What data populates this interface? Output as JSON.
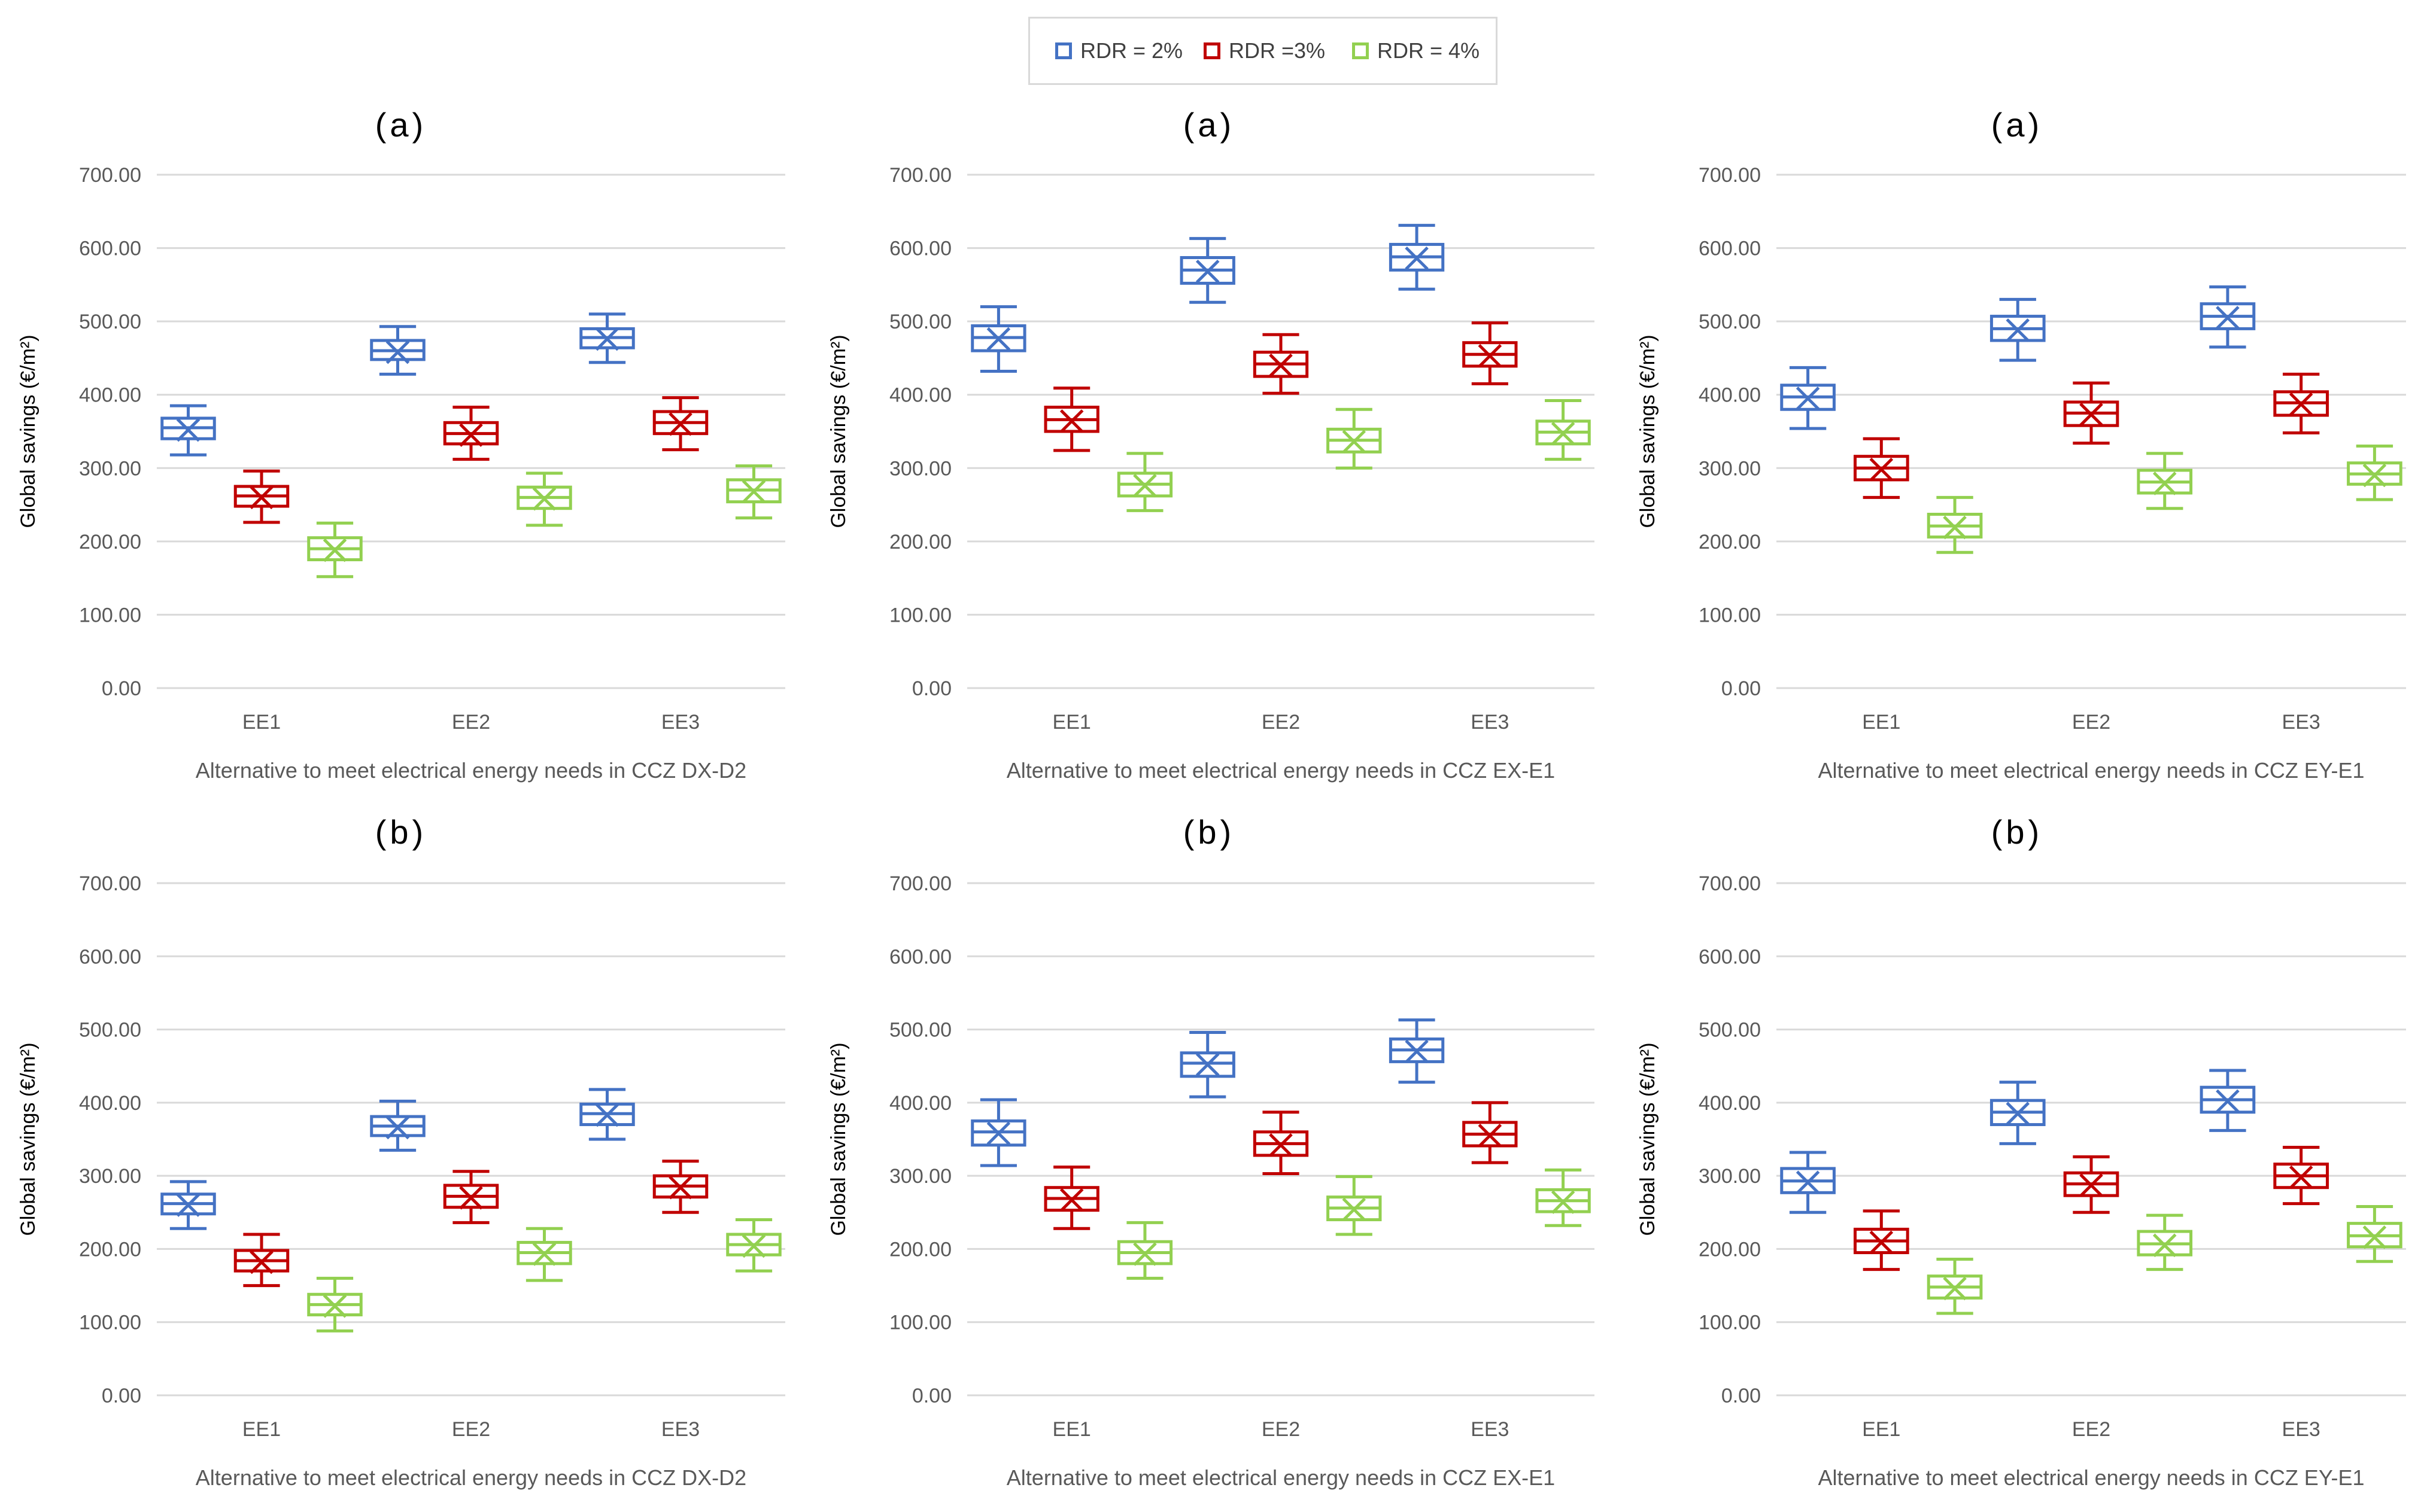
{
  "legend": {
    "items": [
      {
        "label": "RDR = 2%",
        "color": "#4472C4"
      },
      {
        "label": "RDR =3%",
        "color": "#C00000"
      },
      {
        "label": "RDR = 4%",
        "color": "#92D050"
      }
    ]
  },
  "chart_data": [
    {
      "type": "box",
      "title": "(a)",
      "xlabel": "Alternative to meet electrical energy needs in CCZ DX-D2",
      "ylabel": "Global savings (€/m²)",
      "ylim": [
        0,
        700
      ],
      "yticks": [
        "0.00",
        "100.00",
        "200.00",
        "300.00",
        "400.00",
        "500.00",
        "600.00",
        "700.00"
      ],
      "categories": [
        "EE1",
        "EE2",
        "EE3"
      ],
      "series": [
        {
          "name": "RDR = 2%",
          "boxes": [
            {
              "min": 318,
              "q1": 340,
              "median": 355,
              "mean": 352,
              "q3": 368,
              "max": 385
            },
            {
              "min": 428,
              "q1": 448,
              "median": 460,
              "mean": 458,
              "q3": 474,
              "max": 493
            },
            {
              "min": 444,
              "q1": 464,
              "median": 478,
              "mean": 476,
              "q3": 490,
              "max": 510
            }
          ]
        },
        {
          "name": "RDR =3%",
          "boxes": [
            {
              "min": 226,
              "q1": 248,
              "median": 262,
              "mean": 260,
              "q3": 275,
              "max": 296
            },
            {
              "min": 312,
              "q1": 333,
              "median": 347,
              "mean": 345,
              "q3": 362,
              "max": 383
            },
            {
              "min": 325,
              "q1": 347,
              "median": 362,
              "mean": 360,
              "q3": 377,
              "max": 396
            }
          ]
        },
        {
          "name": "RDR = 4%",
          "boxes": [
            {
              "min": 152,
              "q1": 175,
              "median": 190,
              "mean": 188,
              "q3": 205,
              "max": 225
            },
            {
              "min": 222,
              "q1": 245,
              "median": 260,
              "mean": 258,
              "q3": 274,
              "max": 293
            },
            {
              "min": 232,
              "q1": 254,
              "median": 270,
              "mean": 268,
              "q3": 284,
              "max": 303
            }
          ]
        }
      ]
    },
    {
      "type": "box",
      "title": "(a)",
      "xlabel": "Alternative to meet electrical energy needs in CCZ EX-E1",
      "ylabel": "Global savings (€/m²)",
      "ylim": [
        0,
        700
      ],
      "yticks": [
        "0.00",
        "100.00",
        "200.00",
        "300.00",
        "400.00",
        "500.00",
        "600.00",
        "700.00"
      ],
      "categories": [
        "EE1",
        "EE2",
        "EE3"
      ],
      "series": [
        {
          "name": "RDR = 2%",
          "boxes": [
            {
              "min": 432,
              "q1": 460,
              "median": 478,
              "mean": 476,
              "q3": 494,
              "max": 520
            },
            {
              "min": 526,
              "q1": 552,
              "median": 570,
              "mean": 568,
              "q3": 587,
              "max": 613
            },
            {
              "min": 544,
              "q1": 570,
              "median": 588,
              "mean": 586,
              "q3": 605,
              "max": 631
            }
          ]
        },
        {
          "name": "RDR =3%",
          "boxes": [
            {
              "min": 324,
              "q1": 350,
              "median": 366,
              "mean": 364,
              "q3": 383,
              "max": 409
            },
            {
              "min": 402,
              "q1": 425,
              "median": 442,
              "mean": 440,
              "q3": 458,
              "max": 482
            },
            {
              "min": 415,
              "q1": 439,
              "median": 455,
              "mean": 453,
              "q3": 471,
              "max": 498
            }
          ]
        },
        {
          "name": "RDR = 4%",
          "boxes": [
            {
              "min": 242,
              "q1": 262,
              "median": 278,
              "mean": 276,
              "q3": 293,
              "max": 320
            },
            {
              "min": 300,
              "q1": 322,
              "median": 338,
              "mean": 336,
              "q3": 353,
              "max": 380
            },
            {
              "min": 312,
              "q1": 333,
              "median": 349,
              "mean": 347,
              "q3": 364,
              "max": 392
            }
          ]
        }
      ]
    },
    {
      "type": "box",
      "title": "(a)",
      "xlabel": "Alternative to meet electrical energy needs in CCZ EY-E1",
      "ylabel": "Global savings (€/m²)",
      "ylim": [
        0,
        700
      ],
      "yticks": [
        "0.00",
        "100.00",
        "200.00",
        "300.00",
        "400.00",
        "500.00",
        "600.00",
        "700.00"
      ],
      "categories": [
        "EE1",
        "EE2",
        "EE3"
      ],
      "series": [
        {
          "name": "RDR = 2%",
          "boxes": [
            {
              "min": 354,
              "q1": 380,
              "median": 397,
              "mean": 395,
              "q3": 413,
              "max": 437
            },
            {
              "min": 447,
              "q1": 474,
              "median": 490,
              "mean": 488,
              "q3": 507,
              "max": 530
            },
            {
              "min": 465,
              "q1": 490,
              "median": 507,
              "mean": 505,
              "q3": 524,
              "max": 547
            }
          ]
        },
        {
          "name": "RDR =3%",
          "boxes": [
            {
              "min": 260,
              "q1": 284,
              "median": 300,
              "mean": 298,
              "q3": 316,
              "max": 340
            },
            {
              "min": 334,
              "q1": 358,
              "median": 375,
              "mean": 373,
              "q3": 390,
              "max": 416
            },
            {
              "min": 348,
              "q1": 372,
              "median": 389,
              "mean": 387,
              "q3": 404,
              "max": 428
            }
          ]
        },
        {
          "name": "RDR = 4%",
          "boxes": [
            {
              "min": 185,
              "q1": 206,
              "median": 221,
              "mean": 219,
              "q3": 237,
              "max": 260
            },
            {
              "min": 245,
              "q1": 266,
              "median": 281,
              "mean": 279,
              "q3": 297,
              "max": 320
            },
            {
              "min": 257,
              "q1": 278,
              "median": 292,
              "mean": 290,
              "q3": 307,
              "max": 330
            }
          ]
        }
      ]
    },
    {
      "type": "box",
      "title": "(b)",
      "xlabel": "Alternative to meet electrical energy needs in CCZ DX-D2",
      "ylabel": "Global savings (€/m²)",
      "ylim": [
        0,
        700
      ],
      "yticks": [
        "0.00",
        "100.00",
        "200.00",
        "300.00",
        "400.00",
        "500.00",
        "600.00",
        "700.00"
      ],
      "categories": [
        "EE1",
        "EE2",
        "EE3"
      ],
      "series": [
        {
          "name": "RDR = 2%",
          "boxes": [
            {
              "min": 228,
              "q1": 248,
              "median": 262,
              "mean": 260,
              "q3": 275,
              "max": 292
            },
            {
              "min": 335,
              "q1": 355,
              "median": 368,
              "mean": 366,
              "q3": 381,
              "max": 402
            },
            {
              "min": 350,
              "q1": 370,
              "median": 385,
              "mean": 383,
              "q3": 398,
              "max": 418
            }
          ]
        },
        {
          "name": "RDR =3%",
          "boxes": [
            {
              "min": 150,
              "q1": 170,
              "median": 184,
              "mean": 182,
              "q3": 198,
              "max": 220
            },
            {
              "min": 236,
              "q1": 257,
              "median": 272,
              "mean": 270,
              "q3": 287,
              "max": 306
            },
            {
              "min": 250,
              "q1": 271,
              "median": 286,
              "mean": 284,
              "q3": 300,
              "max": 320
            }
          ]
        },
        {
          "name": "RDR = 4%",
          "boxes": [
            {
              "min": 88,
              "q1": 110,
              "median": 124,
              "mean": 122,
              "q3": 138,
              "max": 160
            },
            {
              "min": 157,
              "q1": 180,
              "median": 195,
              "mean": 193,
              "q3": 209,
              "max": 228
            },
            {
              "min": 170,
              "q1": 192,
              "median": 206,
              "mean": 204,
              "q3": 220,
              "max": 240
            }
          ]
        }
      ]
    },
    {
      "type": "box",
      "title": "(b)",
      "xlabel": "Alternative to meet electrical energy needs in CCZ EX-E1",
      "ylabel": "Global savings (€/m²)",
      "ylim": [
        0,
        700
      ],
      "yticks": [
        "0.00",
        "100.00",
        "200.00",
        "300.00",
        "400.00",
        "500.00",
        "600.00",
        "700.00"
      ],
      "categories": [
        "EE1",
        "EE2",
        "EE3"
      ],
      "series": [
        {
          "name": "RDR = 2%",
          "boxes": [
            {
              "min": 314,
              "q1": 342,
              "median": 360,
              "mean": 358,
              "q3": 375,
              "max": 404
            },
            {
              "min": 408,
              "q1": 436,
              "median": 454,
              "mean": 452,
              "q3": 468,
              "max": 496
            },
            {
              "min": 428,
              "q1": 456,
              "median": 472,
              "mean": 470,
              "q3": 487,
              "max": 513
            }
          ]
        },
        {
          "name": "RDR =3%",
          "boxes": [
            {
              "min": 228,
              "q1": 253,
              "median": 269,
              "mean": 267,
              "q3": 284,
              "max": 312
            },
            {
              "min": 303,
              "q1": 328,
              "median": 344,
              "mean": 342,
              "q3": 360,
              "max": 387
            },
            {
              "min": 318,
              "q1": 341,
              "median": 357,
              "mean": 355,
              "q3": 373,
              "max": 400
            }
          ]
        },
        {
          "name": "RDR = 4%",
          "boxes": [
            {
              "min": 160,
              "q1": 180,
              "median": 195,
              "mean": 193,
              "q3": 210,
              "max": 236
            },
            {
              "min": 220,
              "q1": 240,
              "median": 256,
              "mean": 254,
              "q3": 271,
              "max": 299
            },
            {
              "min": 232,
              "q1": 251,
              "median": 266,
              "mean": 264,
              "q3": 281,
              "max": 308
            }
          ]
        }
      ]
    },
    {
      "type": "box",
      "title": "(b)",
      "xlabel": "Alternative to meet electrical energy needs in CCZ EY-E1",
      "ylabel": "Global savings (€/m²)",
      "ylim": [
        0,
        700
      ],
      "yticks": [
        "0.00",
        "100.00",
        "200.00",
        "300.00",
        "400.00",
        "500.00",
        "600.00",
        "700.00"
      ],
      "categories": [
        "EE1",
        "EE2",
        "EE3"
      ],
      "series": [
        {
          "name": "RDR = 2%",
          "boxes": [
            {
              "min": 250,
              "q1": 277,
              "median": 293,
              "mean": 291,
              "q3": 310,
              "max": 332
            },
            {
              "min": 344,
              "q1": 370,
              "median": 387,
              "mean": 385,
              "q3": 403,
              "max": 428
            },
            {
              "min": 362,
              "q1": 387,
              "median": 404,
              "mean": 402,
              "q3": 421,
              "max": 444
            }
          ]
        },
        {
          "name": "RDR =3%",
          "boxes": [
            {
              "min": 172,
              "q1": 195,
              "median": 211,
              "mean": 209,
              "q3": 227,
              "max": 252
            },
            {
              "min": 250,
              "q1": 273,
              "median": 289,
              "mean": 287,
              "q3": 304,
              "max": 326
            },
            {
              "min": 262,
              "q1": 284,
              "median": 300,
              "mean": 298,
              "q3": 316,
              "max": 339
            }
          ]
        },
        {
          "name": "RDR = 4%",
          "boxes": [
            {
              "min": 112,
              "q1": 133,
              "median": 148,
              "mean": 146,
              "q3": 163,
              "max": 186
            },
            {
              "min": 172,
              "q1": 192,
              "median": 207,
              "mean": 205,
              "q3": 224,
              "max": 246
            },
            {
              "min": 183,
              "q1": 203,
              "median": 218,
              "mean": 216,
              "q3": 235,
              "max": 258
            }
          ]
        }
      ]
    }
  ]
}
